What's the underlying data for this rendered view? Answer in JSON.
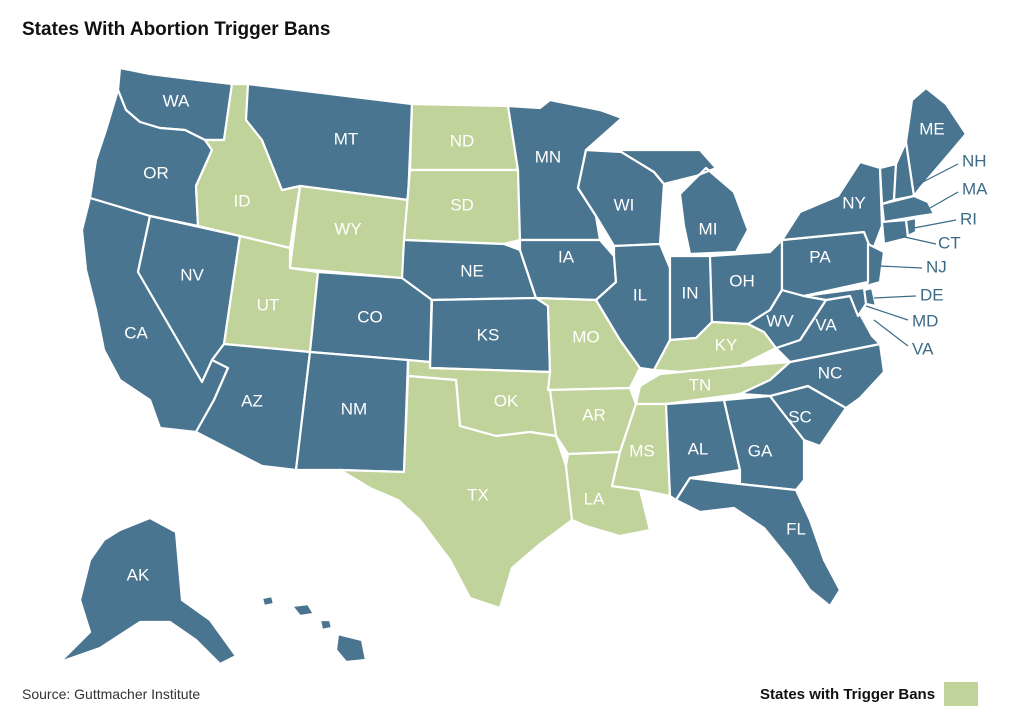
{
  "title": "States With Abortion Trigger Bans",
  "source": "Source: Guttmacher Institute",
  "legend": {
    "label": "States with Trigger Bans",
    "color": "#c0d39b"
  },
  "colors": {
    "trigger_ban": "#c0d39b",
    "no_trigger_ban": "#4a7590",
    "border": "#ffffff",
    "callout_text": "#3d6b86"
  },
  "states": [
    {
      "abbr": "WA",
      "trigger_ban": false
    },
    {
      "abbr": "OR",
      "trigger_ban": false
    },
    {
      "abbr": "CA",
      "trigger_ban": false
    },
    {
      "abbr": "NV",
      "trigger_ban": false
    },
    {
      "abbr": "ID",
      "trigger_ban": true
    },
    {
      "abbr": "MT",
      "trigger_ban": false
    },
    {
      "abbr": "WY",
      "trigger_ban": true
    },
    {
      "abbr": "UT",
      "trigger_ban": true
    },
    {
      "abbr": "AZ",
      "trigger_ban": false
    },
    {
      "abbr": "CO",
      "trigger_ban": false
    },
    {
      "abbr": "NM",
      "trigger_ban": false
    },
    {
      "abbr": "ND",
      "trigger_ban": true
    },
    {
      "abbr": "SD",
      "trigger_ban": true
    },
    {
      "abbr": "NE",
      "trigger_ban": false
    },
    {
      "abbr": "KS",
      "trigger_ban": false
    },
    {
      "abbr": "OK",
      "trigger_ban": true
    },
    {
      "abbr": "TX",
      "trigger_ban": true
    },
    {
      "abbr": "MN",
      "trigger_ban": false
    },
    {
      "abbr": "IA",
      "trigger_ban": false
    },
    {
      "abbr": "MO",
      "trigger_ban": true
    },
    {
      "abbr": "AR",
      "trigger_ban": true
    },
    {
      "abbr": "LA",
      "trigger_ban": true
    },
    {
      "abbr": "WI",
      "trigger_ban": false
    },
    {
      "abbr": "IL",
      "trigger_ban": false
    },
    {
      "abbr": "MI",
      "trigger_ban": false
    },
    {
      "abbr": "IN",
      "trigger_ban": false
    },
    {
      "abbr": "OH",
      "trigger_ban": false
    },
    {
      "abbr": "KY",
      "trigger_ban": true
    },
    {
      "abbr": "TN",
      "trigger_ban": true
    },
    {
      "abbr": "MS",
      "trigger_ban": true
    },
    {
      "abbr": "AL",
      "trigger_ban": false
    },
    {
      "abbr": "GA",
      "trigger_ban": false
    },
    {
      "abbr": "FL",
      "trigger_ban": false
    },
    {
      "abbr": "SC",
      "trigger_ban": false
    },
    {
      "abbr": "NC",
      "trigger_ban": false
    },
    {
      "abbr": "VA",
      "trigger_ban": false
    },
    {
      "abbr": "WV",
      "trigger_ban": false
    },
    {
      "abbr": "PA",
      "trigger_ban": false
    },
    {
      "abbr": "NY",
      "trigger_ban": false
    },
    {
      "abbr": "ME",
      "trigger_ban": false
    },
    {
      "abbr": "NH",
      "trigger_ban": false
    },
    {
      "abbr": "MA",
      "trigger_ban": false
    },
    {
      "abbr": "RI",
      "trigger_ban": false
    },
    {
      "abbr": "CT",
      "trigger_ban": false
    },
    {
      "abbr": "NJ",
      "trigger_ban": false
    },
    {
      "abbr": "DE",
      "trigger_ban": false
    },
    {
      "abbr": "MD",
      "trigger_ban": false
    },
    {
      "abbr": "VT",
      "trigger_ban": false
    },
    {
      "abbr": "AK",
      "trigger_ban": false
    },
    {
      "abbr": "HI",
      "trigger_ban": false
    }
  ],
  "callouts": [
    "NH",
    "MA",
    "RI",
    "CT",
    "NJ",
    "DE",
    "MD",
    "VA"
  ]
}
